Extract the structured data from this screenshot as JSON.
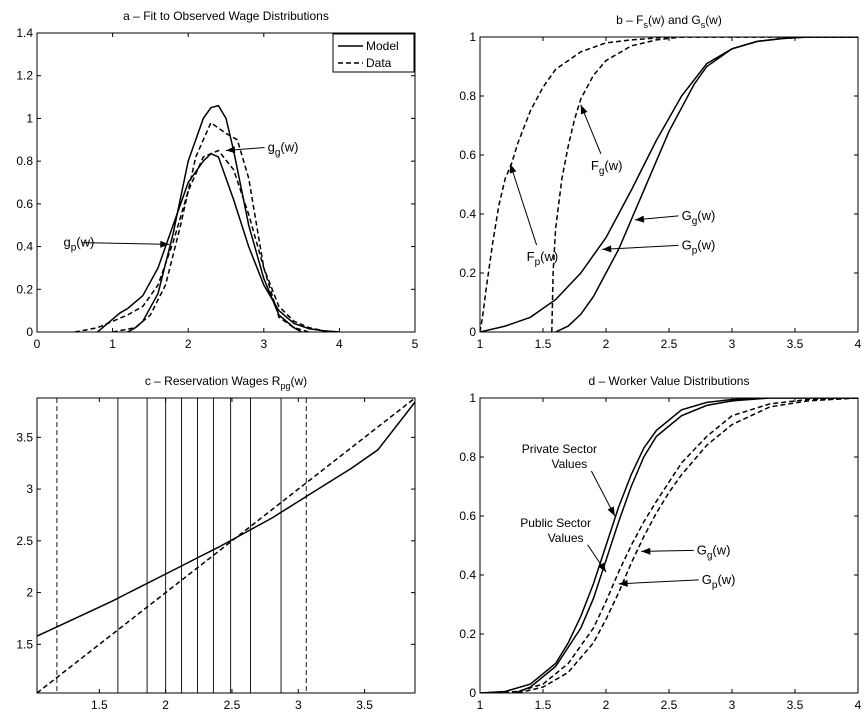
{
  "chart_data": [
    {
      "id": "a",
      "type": "line",
      "title": "a – Fit to Observed Wage Distributions",
      "xlim": [
        0,
        5
      ],
      "ylim": [
        0,
        1.4
      ],
      "xticks": [
        0,
        1,
        2,
        3,
        4,
        5
      ],
      "xtick_labels": [
        "0",
        "1",
        "2",
        "3",
        "4",
        "5"
      ],
      "yticks": [
        0,
        0.2,
        0.4,
        0.6,
        0.8,
        1,
        1.2,
        1.4
      ],
      "ytick_labels": [
        "0",
        "0.2",
        "0.4",
        "0.6",
        "0.8",
        "1",
        "1.2",
        "1.4"
      ],
      "legend": {
        "position": "top-right",
        "entries": [
          {
            "label": "Model",
            "style": "solid"
          },
          {
            "label": "Data",
            "style": "dashed"
          }
        ]
      },
      "series": [
        {
          "style": "solid",
          "x": [
            0.8,
            1.0,
            1.1,
            1.2,
            1.4,
            1.6,
            1.8,
            2.0,
            2.2,
            2.3,
            2.4,
            2.6,
            2.8,
            3.0,
            3.2,
            3.4,
            3.6,
            3.8,
            4.0
          ],
          "y": [
            0,
            0.06,
            0.09,
            0.11,
            0.17,
            0.3,
            0.5,
            0.7,
            0.8,
            0.835,
            0.82,
            0.62,
            0.4,
            0.22,
            0.1,
            0.04,
            0.015,
            0.005,
            0
          ]
        },
        {
          "style": "solid",
          "x": [
            1.2,
            1.3,
            1.4,
            1.6,
            1.8,
            2.0,
            2.2,
            2.3,
            2.4,
            2.5,
            2.6,
            2.8,
            3.0,
            3.2,
            3.4,
            3.5
          ],
          "y": [
            0,
            0.02,
            0.05,
            0.18,
            0.46,
            0.8,
            1.0,
            1.05,
            1.06,
            1.0,
            0.85,
            0.5,
            0.25,
            0.08,
            0.02,
            0
          ]
        },
        {
          "style": "dashed",
          "x": [
            0.5,
            0.8,
            1.0,
            1.2,
            1.4,
            1.6,
            1.8,
            2.0,
            2.2,
            2.4,
            2.6,
            2.8,
            3.0,
            3.2,
            3.4,
            3.6,
            3.8,
            4.0
          ],
          "y": [
            0,
            0.02,
            0.05,
            0.08,
            0.12,
            0.22,
            0.42,
            0.66,
            0.82,
            0.85,
            0.76,
            0.55,
            0.3,
            0.12,
            0.05,
            0.02,
            0.005,
            0
          ]
        },
        {
          "style": "dashed",
          "x": [
            1.0,
            1.3,
            1.5,
            1.7,
            1.9,
            2.1,
            2.3,
            2.5,
            2.65,
            2.8,
            3.0,
            3.2,
            3.4,
            3.6
          ],
          "y": [
            0,
            0.02,
            0.08,
            0.22,
            0.5,
            0.82,
            0.98,
            0.93,
            0.9,
            0.72,
            0.3,
            0.07,
            0.02,
            0
          ]
        }
      ],
      "annotations": [
        {
          "text": "g",
          "sub": "g",
          "suffix": "(w)",
          "text_at": [
            3.05,
            0.845
          ],
          "arrow_to": [
            2.5,
            0.85
          ]
        },
        {
          "text": "g",
          "sub": "p",
          "suffix": "(w)",
          "text_at": [
            0.35,
            0.4
          ],
          "arrow_to": [
            1.75,
            0.41
          ]
        }
      ]
    },
    {
      "id": "b",
      "type": "line",
      "title": "b – Fₛ(w) and Gₛ(w)",
      "title_parts": [
        "b – F",
        "s",
        "(w) and G",
        "s",
        "(w)"
      ],
      "xlim": [
        1,
        4
      ],
      "ylim": [
        0,
        1
      ],
      "xticks": [
        1,
        1.5,
        2,
        2.5,
        3,
        3.5,
        4
      ],
      "xtick_labels": [
        "1",
        "1.5",
        "2",
        "2.5",
        "3",
        "3.5",
        "4"
      ],
      "yticks": [
        0,
        0.2,
        0.4,
        0.6,
        0.8,
        1
      ],
      "ytick_labels": [
        "0",
        "0.2",
        "0.4",
        "0.6",
        "0.8",
        "1"
      ],
      "series": [
        {
          "style": "dashed",
          "x": [
            1.0,
            1.02,
            1.05,
            1.1,
            1.15,
            1.2,
            1.25,
            1.3,
            1.4,
            1.5,
            1.6,
            1.8,
            2.0,
            2.2,
            2.5,
            2.8,
            3.2,
            4.0
          ],
          "y": [
            0,
            0.05,
            0.15,
            0.3,
            0.43,
            0.52,
            0.57,
            0.64,
            0.75,
            0.83,
            0.89,
            0.95,
            0.98,
            0.99,
            1.0,
            1.0,
            1.0,
            1.0
          ]
        },
        {
          "style": "dashed",
          "x": [
            1.57,
            1.58,
            1.6,
            1.65,
            1.7,
            1.75,
            1.8,
            1.9,
            2.0,
            2.2,
            2.4,
            2.6,
            3.0,
            4.0
          ],
          "y": [
            0,
            0.2,
            0.35,
            0.52,
            0.63,
            0.72,
            0.79,
            0.87,
            0.92,
            0.97,
            0.99,
            1.0,
            1.0,
            1.0
          ]
        },
        {
          "style": "solid",
          "x": [
            1.0,
            1.2,
            1.4,
            1.6,
            1.8,
            2.0,
            2.2,
            2.4,
            2.6,
            2.8,
            3.0,
            3.2,
            3.4,
            3.6,
            4.0
          ],
          "y": [
            0,
            0.02,
            0.05,
            0.11,
            0.2,
            0.32,
            0.48,
            0.65,
            0.8,
            0.91,
            0.96,
            0.985,
            0.995,
            1.0,
            1.0
          ]
        },
        {
          "style": "solid",
          "x": [
            1.6,
            1.7,
            1.8,
            1.9,
            2.0,
            2.1,
            2.2,
            2.3,
            2.4,
            2.5,
            2.6,
            2.7,
            2.8,
            3.0,
            3.2,
            3.4,
            3.6,
            4.0
          ],
          "y": [
            0,
            0.02,
            0.06,
            0.12,
            0.2,
            0.28,
            0.38,
            0.48,
            0.58,
            0.68,
            0.76,
            0.84,
            0.9,
            0.96,
            0.985,
            0.995,
            1.0,
            1.0
          ]
        }
      ],
      "annotations": [
        {
          "text": "F",
          "sub": "g",
          "suffix": "(w)",
          "text_at": [
            1.88,
            0.55
          ],
          "arrow_to": [
            1.8,
            0.77
          ]
        },
        {
          "text": "F",
          "sub": "p",
          "suffix": "(w)",
          "text_at": [
            1.37,
            0.24
          ],
          "arrow_to": [
            1.24,
            0.57
          ]
        },
        {
          "text": "G",
          "sub": "g",
          "suffix": "(w)",
          "text_at": [
            2.6,
            0.38
          ],
          "arrow_to": [
            2.23,
            0.38
          ]
        },
        {
          "text": "G",
          "sub": "p",
          "suffix": "(w)",
          "text_at": [
            2.6,
            0.28
          ],
          "arrow_to": [
            1.97,
            0.28
          ]
        }
      ]
    },
    {
      "id": "c",
      "type": "line",
      "title": "c – Reservation Wages Rₚᵍ(w)",
      "title_parts": [
        "c – Reservation Wages R",
        "pg",
        "(w)"
      ],
      "xlim": [
        1.03,
        3.88
      ],
      "ylim": [
        1.03,
        3.88
      ],
      "xticks": [
        1.5,
        2,
        2.5,
        3,
        3.5
      ],
      "xtick_labels": [
        "1.5",
        "2",
        "2.5",
        "3",
        "3.5"
      ],
      "yticks": [
        1.5,
        2,
        2.5,
        3,
        3.5
      ],
      "ytick_labels": [
        "1.5",
        "2",
        "2.5",
        "3",
        "3.5"
      ],
      "series": [
        {
          "style": "solid",
          "x": [
            1.03,
            1.2,
            1.4,
            1.6,
            1.8,
            2.0,
            2.2,
            2.4,
            2.6,
            2.8,
            3.0,
            3.2,
            3.4,
            3.6,
            3.88
          ],
          "y": [
            1.58,
            1.68,
            1.8,
            1.92,
            2.05,
            2.18,
            2.31,
            2.44,
            2.58,
            2.72,
            2.88,
            3.04,
            3.2,
            3.38,
            3.84
          ]
        },
        {
          "style": "dashed",
          "x": [
            1.03,
            3.88
          ],
          "y": [
            1.03,
            3.88
          ]
        }
      ],
      "vlines_solid": [
        1.64,
        1.86,
        2.0,
        2.12,
        2.24,
        2.36,
        2.49,
        2.64,
        2.87
      ],
      "vlines_dashed": [
        1.18,
        3.06
      ]
    },
    {
      "id": "d",
      "type": "line",
      "title": "d – Worker Value Distributions",
      "xlim": [
        1,
        4
      ],
      "ylim": [
        0,
        1
      ],
      "xticks": [
        1,
        1.5,
        2,
        2.5,
        3,
        3.5,
        4
      ],
      "xtick_labels": [
        "1",
        "1.5",
        "2",
        "2.5",
        "3",
        "3.5",
        "4"
      ],
      "yticks": [
        0,
        0.2,
        0.4,
        0.6,
        0.8,
        1
      ],
      "ytick_labels": [
        "0",
        "0.2",
        "0.4",
        "0.6",
        "0.8",
        "1"
      ],
      "series": [
        {
          "style": "solid",
          "x": [
            1.0,
            1.2,
            1.4,
            1.6,
            1.7,
            1.8,
            1.9,
            2.0,
            2.1,
            2.2,
            2.3,
            2.4,
            2.6,
            2.8,
            3.0,
            3.3,
            3.6,
            4.0
          ],
          "y": [
            0,
            0.005,
            0.03,
            0.1,
            0.17,
            0.26,
            0.37,
            0.5,
            0.63,
            0.74,
            0.83,
            0.89,
            0.96,
            0.985,
            0.995,
            1.0,
            1.0,
            1.0
          ]
        },
        {
          "style": "solid",
          "x": [
            1.28,
            1.4,
            1.6,
            1.8,
            1.9,
            2.0,
            2.1,
            2.2,
            2.3,
            2.4,
            2.6,
            2.8,
            3.0,
            3.3,
            3.6,
            4.0
          ],
          "y": [
            0,
            0.02,
            0.09,
            0.22,
            0.32,
            0.45,
            0.58,
            0.7,
            0.8,
            0.87,
            0.94,
            0.975,
            0.99,
            1.0,
            1.0,
            1.0
          ]
        },
        {
          "style": "dashed",
          "x": [
            1.0,
            1.3,
            1.5,
            1.7,
            1.9,
            2.0,
            2.1,
            2.2,
            2.3,
            2.4,
            2.6,
            2.8,
            3.0,
            3.3,
            3.6,
            4.0
          ],
          "y": [
            0,
            0.005,
            0.03,
            0.1,
            0.22,
            0.31,
            0.41,
            0.5,
            0.58,
            0.65,
            0.78,
            0.87,
            0.94,
            0.98,
            0.995,
            1.0
          ]
        },
        {
          "style": "dashed",
          "x": [
            1.3,
            1.5,
            1.7,
            1.9,
            2.0,
            2.1,
            2.2,
            2.3,
            2.4,
            2.5,
            2.6,
            2.8,
            3.0,
            3.3,
            3.6,
            4.0
          ],
          "y": [
            0,
            0.02,
            0.07,
            0.17,
            0.25,
            0.34,
            0.44,
            0.53,
            0.61,
            0.68,
            0.74,
            0.84,
            0.91,
            0.97,
            0.99,
            1.0
          ]
        }
      ],
      "annotations": [
        {
          "text": "Private Sector",
          "text2": "Values",
          "text_at": [
            1.63,
            0.8
          ],
          "arrow_to": [
            2.07,
            0.6
          ]
        },
        {
          "text": "Public Sector",
          "text2": "Values",
          "text_at": [
            1.6,
            0.55
          ],
          "arrow_to": [
            2.0,
            0.41
          ]
        },
        {
          "text": "G",
          "sub": "g",
          "suffix": "(w)",
          "text_at": [
            2.72,
            0.47
          ],
          "arrow_to": [
            2.28,
            0.48
          ]
        },
        {
          "text": "G",
          "sub": "p",
          "suffix": "(w)",
          "text_at": [
            2.76,
            0.37
          ],
          "arrow_to": [
            2.1,
            0.37
          ]
        }
      ]
    }
  ]
}
